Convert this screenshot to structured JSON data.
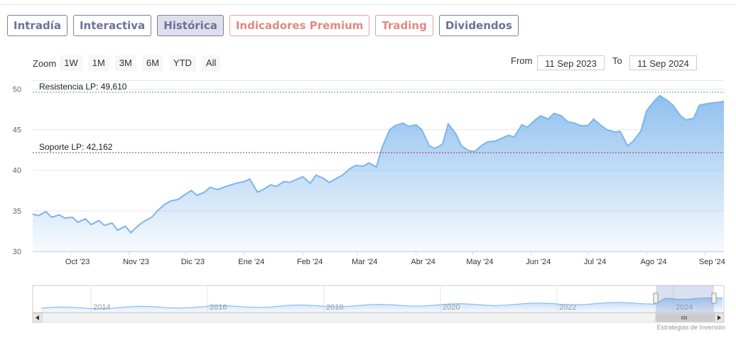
{
  "tabs": [
    {
      "label": "Intradía",
      "style": "normal"
    },
    {
      "label": "Interactiva",
      "style": "normal"
    },
    {
      "label": "Histórica",
      "style": "active"
    },
    {
      "label": "Indicadores Premium",
      "style": "premium"
    },
    {
      "label": "Trading",
      "style": "premium"
    },
    {
      "label": "Dividendos",
      "style": "normal"
    }
  ],
  "zoom": {
    "label": "Zoom",
    "buttons": [
      "1W",
      "1M",
      "3M",
      "6M",
      "YTD",
      "All"
    ]
  },
  "range": {
    "from_label": "From",
    "from_value": "11 Sep 2023",
    "to_label": "To",
    "to_value": "11 Sep 2024"
  },
  "credit": "Estrategias de Inversión",
  "chart_data": {
    "type": "area",
    "x_range": [
      "2023-09-11",
      "2024-09-11"
    ],
    "ylim": [
      30,
      51
    ],
    "yticks": [
      30,
      35,
      40,
      45,
      50
    ],
    "xticks": [
      {
        "date": "2023-10-01",
        "label": "Oct '23"
      },
      {
        "date": "2023-11-01",
        "label": "Nov '23"
      },
      {
        "date": "2023-12-01",
        "label": "Dic '23"
      },
      {
        "date": "2024-01-01",
        "label": "Ene '24"
      },
      {
        "date": "2024-02-01",
        "label": "Feb '24"
      },
      {
        "date": "2024-03-01",
        "label": "Mar '24"
      },
      {
        "date": "2024-04-01",
        "label": "Abr '24"
      },
      {
        "date": "2024-05-01",
        "label": "May '24"
      },
      {
        "date": "2024-06-01",
        "label": "Jun '24"
      },
      {
        "date": "2024-07-01",
        "label": "Jul '24"
      },
      {
        "date": "2024-08-01",
        "label": "Ago '24"
      },
      {
        "date": "2024-09-01",
        "label": "Sep '24"
      }
    ],
    "series": [
      {
        "color": "#7cb5ec",
        "x": [
          "2023-09-11",
          "2023-09-14",
          "2023-09-18",
          "2023-09-21",
          "2023-09-25",
          "2023-09-28",
          "2023-10-02",
          "2023-10-05",
          "2023-10-09",
          "2023-10-12",
          "2023-10-16",
          "2023-10-19",
          "2023-10-23",
          "2023-10-26",
          "2023-10-30",
          "2023-11-02",
          "2023-11-06",
          "2023-11-09",
          "2023-11-13",
          "2023-11-16",
          "2023-11-20",
          "2023-11-23",
          "2023-11-27",
          "2023-11-30",
          "2023-12-04",
          "2023-12-07",
          "2023-12-11",
          "2023-12-14",
          "2023-12-18",
          "2023-12-21",
          "2023-12-25",
          "2023-12-28",
          "2024-01-01",
          "2024-01-04",
          "2024-01-08",
          "2024-01-11",
          "2024-01-15",
          "2024-01-18",
          "2024-01-22",
          "2024-01-25",
          "2024-01-29",
          "2024-02-01",
          "2024-02-05",
          "2024-02-08",
          "2024-02-12",
          "2024-02-15",
          "2024-02-19",
          "2024-02-22",
          "2024-02-26",
          "2024-02-29",
          "2024-03-04",
          "2024-03-07",
          "2024-03-11",
          "2024-03-14",
          "2024-03-18",
          "2024-03-21",
          "2024-03-25",
          "2024-03-28",
          "2024-04-01",
          "2024-04-04",
          "2024-04-08",
          "2024-04-11",
          "2024-04-15",
          "2024-04-18",
          "2024-04-22",
          "2024-04-25",
          "2024-04-29",
          "2024-05-02",
          "2024-05-06",
          "2024-05-09",
          "2024-05-13",
          "2024-05-16",
          "2024-05-20",
          "2024-05-23",
          "2024-05-27",
          "2024-05-30",
          "2024-06-03",
          "2024-06-06",
          "2024-06-10",
          "2024-06-13",
          "2024-06-17",
          "2024-06-20",
          "2024-06-24",
          "2024-06-27",
          "2024-07-01",
          "2024-07-04",
          "2024-07-08",
          "2024-07-11",
          "2024-07-15",
          "2024-07-18",
          "2024-07-22",
          "2024-07-25",
          "2024-07-29",
          "2024-08-01",
          "2024-08-05",
          "2024-08-08",
          "2024-08-12",
          "2024-08-15",
          "2024-08-19",
          "2024-08-22",
          "2024-08-26",
          "2024-08-29",
          "2024-09-02",
          "2024-09-05",
          "2024-09-09",
          "2024-09-11"
        ],
        "values": [
          34.6,
          34.4,
          34.9,
          34.2,
          34.5,
          34.1,
          34.2,
          33.6,
          34.0,
          33.3,
          33.8,
          33.2,
          33.5,
          32.6,
          33.1,
          32.3,
          33.2,
          33.7,
          34.2,
          35.0,
          35.8,
          36.2,
          36.4,
          36.9,
          37.5,
          36.9,
          37.3,
          37.9,
          37.6,
          37.9,
          38.2,
          38.4,
          38.6,
          38.9,
          37.3,
          37.6,
          38.2,
          38.0,
          38.6,
          38.5,
          38.9,
          39.2,
          38.4,
          39.4,
          39.0,
          38.5,
          39.0,
          39.4,
          40.2,
          40.6,
          40.5,
          40.9,
          40.4,
          42.8,
          45.0,
          45.5,
          45.8,
          45.4,
          45.6,
          45.0,
          43.0,
          42.7,
          43.2,
          45.7,
          44.5,
          43.0,
          42.4,
          42.3,
          43.1,
          43.5,
          43.6,
          43.9,
          44.3,
          44.1,
          45.6,
          45.3,
          46.2,
          46.7,
          46.3,
          47.0,
          46.7,
          46.0,
          45.8,
          45.5,
          45.5,
          46.3,
          45.5,
          45.0,
          44.7,
          44.8,
          43.0,
          43.6,
          44.8,
          47.3,
          48.5,
          49.2,
          48.6,
          48.0,
          46.7,
          46.2,
          46.4,
          48.0,
          48.2,
          48.3,
          48.4,
          48.5
        ]
      }
    ],
    "plot_lines": [
      {
        "value": 49.61,
        "label": "Resistencia LP: 49,610",
        "color": "#4caf50"
      },
      {
        "value": 42.162,
        "label": "Soporte LP: 42,162",
        "color": "#a83240"
      }
    ],
    "navigator": {
      "xticks": [
        "2014",
        "2016",
        "2018",
        "2020",
        "2022",
        "2024"
      ]
    }
  }
}
